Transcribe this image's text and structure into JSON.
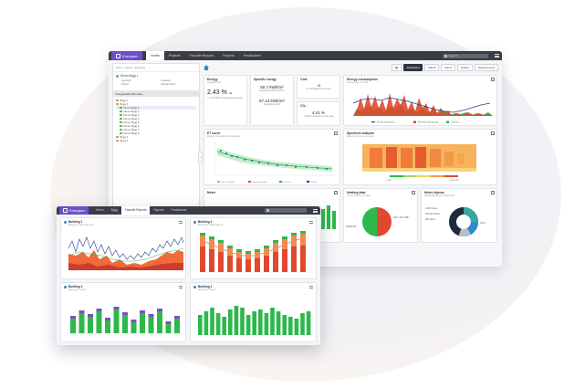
{
  "main": {
    "app_name": "Energiser",
    "nav": [
      "Home",
      "Projects",
      "Favorite Reports",
      "Reports",
      "Prediciamel"
    ],
    "search_placeholder": "Search",
    "sidebar": {
      "crumb": "Home · Assets · Buildings",
      "site": "Demo Bygg 1",
      "meta": [
        "Oppholdt",
        "Lokalisert",
        "Tilknytt",
        "Avbrudd aktivt"
      ],
      "section": "Energisalsen Bronsen",
      "tree": [
        "Bygg 1",
        "Bygg 2",
        "Demo Bygg 1",
        "Demo Bygg 2",
        "Demo Bygg 3",
        "Demo Bygg 4",
        "Demo Bygg 5",
        "Demo Bygg 6",
        "Demo Bygg 7",
        "Demo Bygg 8",
        "Bygg 3",
        "Bygg 4"
      ]
    },
    "toolbar": [
      "Dashboard",
      "Elkraft",
      "Varme",
      "Kjoling",
      "Settings report"
    ],
    "cards": {
      "energy": {
        "title": "Energy",
        "sub": "Energibruken",
        "value": "2.43 %",
        "note": "+ 1 579 kWh compared to last year"
      },
      "specific": {
        "title": "Specific energy",
        "value1": "50.7 kWh/m²",
        "note1": "Energibruk 2021 kWh/m²",
        "value2": "87.13 kWh/m²",
        "note2": "Energibruk 2022"
      },
      "cost": {
        "title": "Cost",
        "value": "-%",
        "note": "-% compared to last year"
      },
      "co2": {
        "title": "CO₂",
        "value": "4.41 %",
        "note": "+ 83 kg compared to last year"
      },
      "consumption": {
        "title": "Energy consumption",
        "sub": "Energi siste 12 mnd",
        "legend": [
          "Energi distribusjon",
          "Elektrisk oppvarming",
          "Utetemp"
        ]
      },
      "et": {
        "title": "ET curve",
        "sub": "Energy vs outdoor temperature",
        "legend": [
          "Last 12 months",
          "Last temperature",
          "ET curve",
          "ET Mal"
        ]
      },
      "spectrum": {
        "title": "Spectrum analysis",
        "sub": "Energi per time, siste uke",
        "scale_min": "0 kWh",
        "scale_max": "1000 kWh"
      },
      "meter": {
        "title": "Meter"
      },
      "heating": {
        "title": "Heating data",
        "sub": "Varme fordelt per kilde",
        "labels": [
          "45.58 kWh",
          "Varm: 40.7 kWh"
        ]
      },
      "meters_dist": {
        "title": "Meter skjema",
        "sub": "Energi fordelt per malepunkt",
        "labels": [
          "1 000 Tverss",
          "500 Fjernvarme",
          "200 Varme",
          "Strom"
        ]
      }
    }
  },
  "overlay": {
    "app_name": "Energiser",
    "nav": [
      "Home",
      "Bygg",
      "Favorite Reports",
      "Reports",
      "Prediciamel"
    ],
    "cards": [
      {
        "title": "Building 1",
        "sub": "Energi per time siste mnd"
      },
      {
        "title": "Building 2",
        "sub": "Energi per maned siste ar"
      },
      {
        "title": "Building 3",
        "sub": "Energi per maned"
      },
      {
        "title": "Building 4",
        "sub": "Energi per maned"
      }
    ]
  },
  "colors": {
    "accent": "#6b4fc8",
    "topbar": "#3a3d46",
    "green": "#2db84b",
    "red": "#e0492f",
    "navy": "#1e3a8a",
    "blue": "#2e8bc9"
  }
}
